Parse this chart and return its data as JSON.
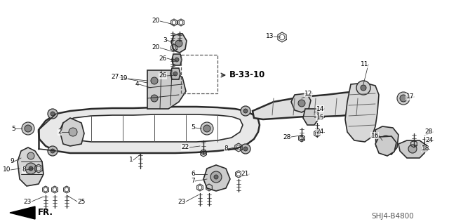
{
  "background_color": "#ffffff",
  "diagram_code": "SHJ4-B4800",
  "ref_label": "B-33-10",
  "fr_label": "FR.",
  "lc": "#2a2a2a",
  "label_fontsize": 6.5,
  "ref_fontsize": 8.5,
  "diagram_fontsize": 7.5
}
